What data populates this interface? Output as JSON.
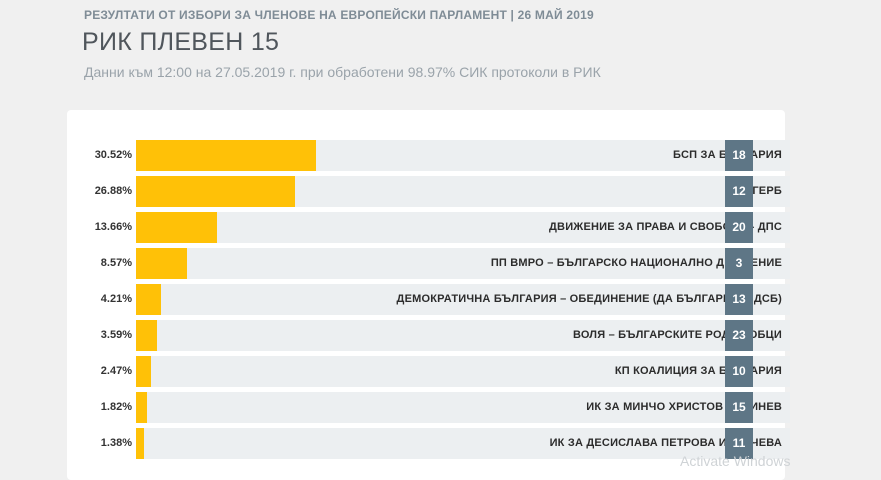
{
  "header": {
    "kicker": "РЕЗУЛТАТИ ОТ ИЗБОРИ ЗА ЧЛЕНОВЕ НА ЕВРОПЕЙСКИ ПАРЛАМЕНТ | 26 МАЙ 2019",
    "title": "РИК ПЛЕВЕН 15",
    "subtitle": "Данни към 12:00 на 27.05.2019 г. при обработени 98.97% СИК протоколи в РИК"
  },
  "chart_data": {
    "type": "bar",
    "orientation": "horizontal",
    "xlim": [
      0,
      100
    ],
    "colors": {
      "bar": "#ffc107",
      "track": "#eceff1",
      "badge": "#5e7686"
    },
    "rows": [
      {
        "percent_label": "30.52%",
        "value": 30.52,
        "party": "БСП ЗА БЪЛГАРИЯ",
        "ballot_number": "18"
      },
      {
        "percent_label": "26.88%",
        "value": 26.88,
        "party": "ПП ГЕРБ",
        "ballot_number": "12"
      },
      {
        "percent_label": "13.66%",
        "value": 13.66,
        "party": "ДВИЖЕНИЕ ЗА ПРАВА И СВОБОДИ - ДПС",
        "ballot_number": "20"
      },
      {
        "percent_label": "8.57%",
        "value": 8.57,
        "party": "ПП ВМРО – БЪЛГАРСКО НАЦИОНАЛНО ДВИЖЕНИЕ",
        "ballot_number": "3"
      },
      {
        "percent_label": "4.21%",
        "value": 4.21,
        "party": "ДЕМОКРАТИЧНА БЪЛГАРИЯ – ОБЕДИНЕНИЕ (ДА БЪЛГАРИЯ И ДСБ)",
        "ballot_number": "13"
      },
      {
        "percent_label": "3.59%",
        "value": 3.59,
        "party": "ВОЛЯ – БЪЛГАРСКИТЕ РОДОЛЮБЦИ",
        "ballot_number": "23"
      },
      {
        "percent_label": "2.47%",
        "value": 2.47,
        "party": "КП КОАЛИЦИЯ ЗА БЪЛГАРИЯ",
        "ballot_number": "10"
      },
      {
        "percent_label": "1.82%",
        "value": 1.82,
        "party": "ИК ЗА МИНЧО ХРИСТОВ КУМИНЕВ",
        "ballot_number": "15"
      },
      {
        "percent_label": "1.38%",
        "value": 1.38,
        "party": "ИК ЗА ДЕСИСЛАВА ПЕТРОВА ИВАНЧЕВА",
        "ballot_number": "11"
      }
    ]
  },
  "watermark": "Activate Windows"
}
